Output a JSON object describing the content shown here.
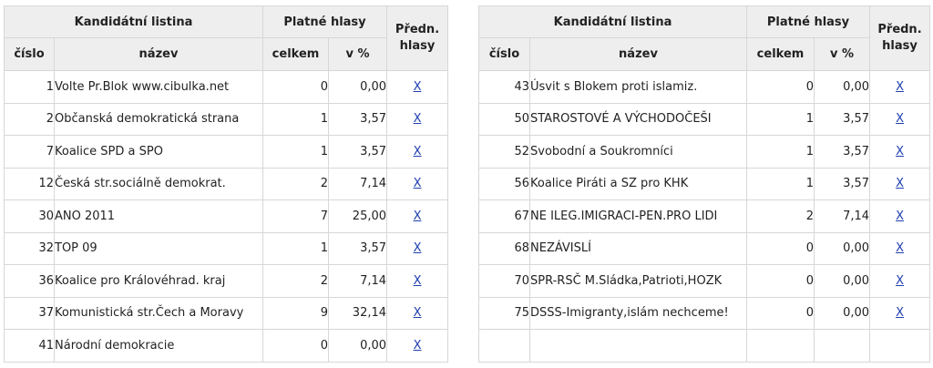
{
  "headers": {
    "kandidatni_listina": "Kandidátní listina",
    "platne_hlasy": "Platné hlasy",
    "predn_hlasy_line1": "Předn.",
    "predn_hlasy_line2": "hlasy",
    "cislo": "číslo",
    "nazev": "název",
    "celkem": "celkem",
    "v_procentech": "v %"
  },
  "left_table": [
    {
      "cislo": "1",
      "nazev": "Volte Pr.Blok www.cibulka.net",
      "celkem": "0",
      "procent": "0,00",
      "link": "X"
    },
    {
      "cislo": "2",
      "nazev": "Občanská demokratická strana",
      "celkem": "1",
      "procent": "3,57",
      "link": "X"
    },
    {
      "cislo": "7",
      "nazev": "Koalice SPD a SPO",
      "celkem": "1",
      "procent": "3,57",
      "link": "X"
    },
    {
      "cislo": "12",
      "nazev": "Česká str.sociálně demokrat.",
      "celkem": "2",
      "procent": "7,14",
      "link": "X"
    },
    {
      "cislo": "30",
      "nazev": "ANO 2011",
      "celkem": "7",
      "procent": "25,00",
      "link": "X"
    },
    {
      "cislo": "32",
      "nazev": "TOP 09",
      "celkem": "1",
      "procent": "3,57",
      "link": "X"
    },
    {
      "cislo": "36",
      "nazev": "Koalice pro Královéhrad. kraj",
      "celkem": "2",
      "procent": "7,14",
      "link": "X"
    },
    {
      "cislo": "37",
      "nazev": "Komunistická str.Čech a Moravy",
      "celkem": "9",
      "procent": "32,14",
      "link": "X"
    },
    {
      "cislo": "41",
      "nazev": "Národní demokracie",
      "celkem": "0",
      "procent": "0,00",
      "link": "X"
    }
  ],
  "right_table": [
    {
      "cislo": "43",
      "nazev": "Úsvit s Blokem proti islamiz.",
      "celkem": "0",
      "procent": "0,00",
      "link": "X"
    },
    {
      "cislo": "50",
      "nazev": "STAROSTOVÉ A VÝCHODOČEŠI",
      "celkem": "1",
      "procent": "3,57",
      "link": "X"
    },
    {
      "cislo": "52",
      "nazev": "Svobodní a Soukromníci",
      "celkem": "1",
      "procent": "3,57",
      "link": "X"
    },
    {
      "cislo": "56",
      "nazev": "Koalice Piráti a SZ pro KHK",
      "celkem": "1",
      "procent": "3,57",
      "link": "X"
    },
    {
      "cislo": "67",
      "nazev": "NE ILEG.IMIGRACI-PEN.PRO LIDI",
      "celkem": "2",
      "procent": "7,14",
      "link": "X"
    },
    {
      "cislo": "68",
      "nazev": "NEZÁVISLÍ",
      "celkem": "0",
      "procent": "0,00",
      "link": "X"
    },
    {
      "cislo": "70",
      "nazev": "SPR-RSČ M.Sládka,Patrioti,HOZK",
      "celkem": "0",
      "procent": "0,00",
      "link": "X"
    },
    {
      "cislo": "75",
      "nazev": "DSSS-Imigranty,islám nechceme!",
      "celkem": "0",
      "procent": "0,00",
      "link": "X"
    },
    {
      "cislo": "",
      "nazev": "",
      "celkem": "",
      "procent": "",
      "link": ""
    }
  ]
}
